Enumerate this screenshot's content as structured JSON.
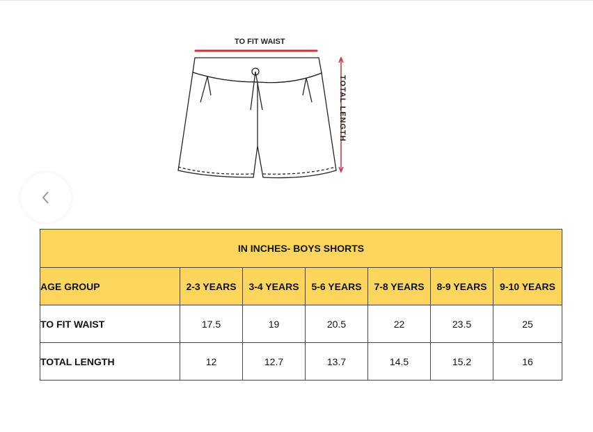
{
  "diagram": {
    "waist_label": "TO FIT WAIST",
    "length_label": "TOTAL LENGTH",
    "accent_color": "#c8323c"
  },
  "carousel": {
    "prev_icon": "chevron-left-icon"
  },
  "table": {
    "title": "IN INCHES- BOYS SHORTS",
    "header_color": "#fcd65c",
    "columns": [
      "AGE GROUP",
      "2-3 YEARS",
      "3-4 YEARS",
      "5-6 YEARS",
      "7-8 YEARS",
      "8-9 YEARS",
      "9-10 YEARS"
    ],
    "rows": [
      {
        "label": "TO FIT WAIST",
        "values": [
          "17.5",
          "19",
          "20.5",
          "22",
          "23.5",
          "25"
        ]
      },
      {
        "label": "TOTAL LENGTH",
        "values": [
          "12",
          "12.7",
          "13.7",
          "14.5",
          "15.2",
          "16"
        ]
      }
    ]
  }
}
